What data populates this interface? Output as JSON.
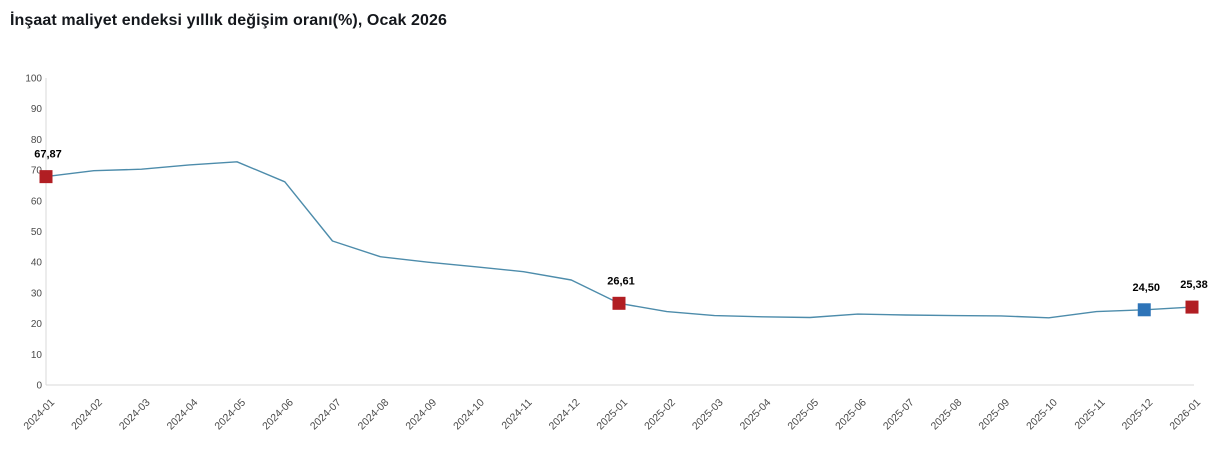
{
  "title": "İnşaat maliyet endeksi yıllık değişim oranı(%), Ocak 2026",
  "chart_data": {
    "type": "line",
    "title": "İnşaat maliyet endeksi yıllık değişim oranı(%), Ocak 2026",
    "xlabel": "",
    "ylabel": "",
    "ylim": [
      0,
      100
    ],
    "yticks": [
      0,
      10,
      20,
      30,
      40,
      50,
      60,
      70,
      80,
      90,
      100
    ],
    "grid": false,
    "legend": false,
    "categories": [
      "2024-01",
      "2024-02",
      "2024-03",
      "2024-04",
      "2024-05",
      "2024-06",
      "2024-07",
      "2024-08",
      "2024-09",
      "2024-10",
      "2024-11",
      "2024-12",
      "2025-01",
      "2025-02",
      "2025-03",
      "2025-04",
      "2025-05",
      "2025-06",
      "2025-07",
      "2025-08",
      "2025-09",
      "2025-10",
      "2025-11",
      "2025-12",
      "2026-01"
    ],
    "values": [
      67.87,
      69.8,
      70.3,
      71.7,
      72.7,
      66.2,
      46.9,
      41.8,
      40.0,
      38.5,
      36.9,
      34.2,
      26.61,
      23.9,
      22.6,
      22.2,
      22.0,
      23.1,
      22.8,
      22.6,
      22.5,
      21.9,
      23.9,
      24.5,
      25.38
    ],
    "highlighted_points": [
      {
        "category": "2024-01",
        "index": 0,
        "label": "67,87",
        "color": "#b11e23"
      },
      {
        "category": "2025-01",
        "index": 12,
        "label": "26,61",
        "color": "#b11e23"
      },
      {
        "category": "2025-12",
        "index": 23,
        "label": "24,50",
        "color": "#2e74b8"
      },
      {
        "category": "2026-01",
        "index": 24,
        "label": "25,38",
        "color": "#b11e23"
      }
    ]
  },
  "colors": {
    "line": "#4d8cab",
    "marker_red": "#b11e23",
    "marker_blue": "#2e74b8",
    "axis_line": "#d9d9d9",
    "tick_text": "#4a4a4a",
    "value_label_text": "#000000",
    "title_text": "#14171c",
    "background": "#ffffff"
  }
}
